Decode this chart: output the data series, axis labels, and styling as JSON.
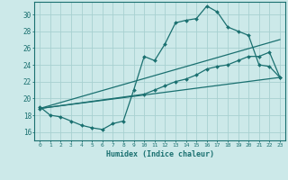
{
  "xlabel": "Humidex (Indice chaleur)",
  "xlim": [
    -0.5,
    23.5
  ],
  "ylim": [
    15.0,
    31.5
  ],
  "yticks": [
    16,
    18,
    20,
    22,
    24,
    26,
    28,
    30
  ],
  "xticks": [
    0,
    1,
    2,
    3,
    4,
    5,
    6,
    7,
    8,
    9,
    10,
    11,
    12,
    13,
    14,
    15,
    16,
    17,
    18,
    19,
    20,
    21,
    22,
    23
  ],
  "bg_color": "#cce9e9",
  "grid_color": "#a8d0d0",
  "line_color": "#1a7070",
  "line1_x": [
    0,
    1,
    2,
    3,
    4,
    5,
    6,
    7,
    8,
    9,
    10,
    11,
    12,
    13,
    14,
    15,
    16,
    17,
    18,
    19,
    20,
    21,
    22,
    23
  ],
  "line1_y": [
    19.0,
    18.0,
    17.8,
    17.3,
    16.8,
    16.5,
    16.3,
    17.0,
    17.3,
    21.0,
    25.0,
    24.5,
    26.5,
    29.0,
    29.3,
    29.5,
    31.0,
    30.3,
    28.5,
    28.0,
    27.5,
    24.0,
    23.8,
    22.5
  ],
  "line2_x": [
    0,
    23
  ],
  "line2_y": [
    18.8,
    27.0
  ],
  "line3_x": [
    0,
    23
  ],
  "line3_y": [
    18.8,
    22.5
  ],
  "line_mid_x": [
    0,
    10,
    11,
    12,
    13,
    14,
    15,
    16,
    17,
    18,
    19,
    20,
    21,
    22,
    23
  ],
  "line_mid_y": [
    18.8,
    20.5,
    21.0,
    21.5,
    22.0,
    22.3,
    22.8,
    23.5,
    23.8,
    24.0,
    24.5,
    25.0,
    25.0,
    25.5,
    22.5
  ]
}
